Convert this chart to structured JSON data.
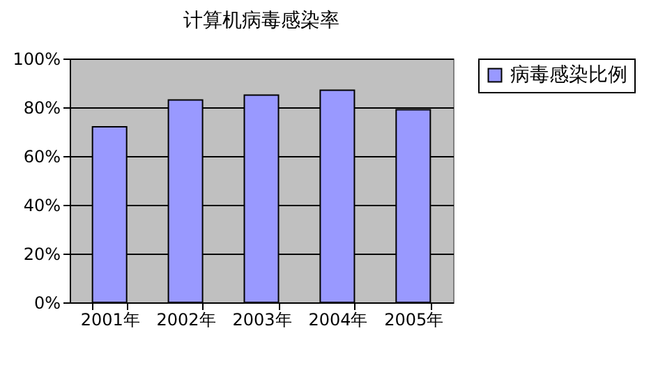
{
  "chart_data": {
    "type": "bar",
    "title": "计算机病毒感染率",
    "categories": [
      "2001年",
      "2002年",
      "2003年",
      "2004年",
      "2005年"
    ],
    "series": [
      {
        "name": "病毒感染比例",
        "color": "#9999ff",
        "values": [
          72,
          83,
          85,
          87,
          79
        ]
      }
    ],
    "ylim": [
      0,
      100
    ],
    "yticks": [
      {
        "value": 0,
        "label": "0%"
      },
      {
        "value": 20,
        "label": "20%"
      },
      {
        "value": 40,
        "label": "40%"
      },
      {
        "value": 60,
        "label": "60%"
      },
      {
        "value": 80,
        "label": "80%"
      },
      {
        "value": 100,
        "label": "100%"
      }
    ],
    "grid": "y",
    "legend": "right"
  }
}
